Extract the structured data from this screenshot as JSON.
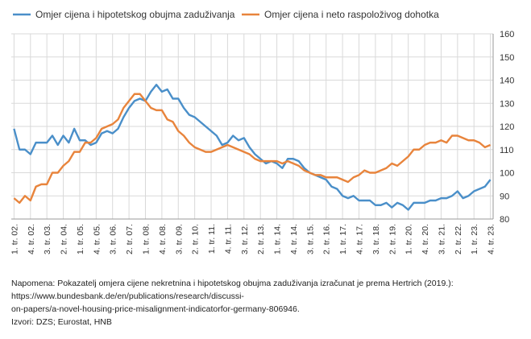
{
  "chart_data": {
    "type": "line",
    "categories": [
      "1. tr. 02.",
      null,
      null,
      "4. tr. 02.",
      null,
      null,
      "3. tr. 03.",
      null,
      null,
      "2. tr. 04.",
      null,
      null,
      "1. tr. 05.",
      null,
      null,
      "4. tr. 05.",
      null,
      null,
      "3. tr. 06.",
      null,
      null,
      "2. tr. 07.",
      null,
      null,
      "1. tr. 08.",
      null,
      null,
      "4. tr. 08.",
      null,
      null,
      "3. tr. 09.",
      null,
      null,
      "2. tr. 10.",
      null,
      null,
      "1. tr. 11.",
      null,
      null,
      "4. tr. 11.",
      null,
      null,
      "3. tr. 12.",
      null,
      null,
      "2. tr. 13.",
      null,
      null,
      "1. tr. 14.",
      null,
      null,
      "4. tr. 14.",
      null,
      null,
      "3. tr. 15.",
      null,
      null,
      "2. tr. 16.",
      null,
      null,
      "1. tr. 17.",
      null,
      null,
      "4. tr. 17.",
      null,
      null,
      "3. tr. 18.",
      null,
      null,
      "2. tr. 19.",
      null,
      null,
      "1. tr. 20.",
      null,
      null,
      "4. tr. 20.",
      null,
      null,
      "3. tr. 21.",
      null,
      null,
      "2. tr. 22.",
      null,
      null,
      "1. tr. 23.",
      null,
      null,
      "4. tr. 23."
    ],
    "series": [
      {
        "name": "Omjer cijena i hipotetskog obujma zaduživanja",
        "color": "#4a8fc9",
        "values": [
          119,
          110,
          110,
          108,
          113,
          113,
          113,
          116,
          112,
          116,
          113,
          119,
          114,
          114,
          112,
          113,
          117,
          118,
          117,
          119,
          124,
          128,
          131,
          132,
          131,
          135,
          138,
          135,
          136,
          132,
          132,
          128,
          125,
          124,
          122,
          120,
          118,
          116,
          112,
          113,
          116,
          114,
          115,
          111,
          108,
          106,
          104,
          105,
          104,
          102,
          106,
          106,
          105,
          102,
          100,
          99,
          98,
          97,
          94,
          93,
          90,
          89,
          90,
          88,
          88,
          88,
          86,
          86,
          87,
          85,
          87,
          86,
          84,
          87,
          87,
          87,
          88,
          88,
          89,
          89,
          90,
          92,
          89,
          90,
          92,
          93,
          94,
          97
        ]
      },
      {
        "name": "Omjer cijena i neto raspoloživog dohotka",
        "color": "#e8843c",
        "values": [
          89,
          87,
          90,
          88,
          94,
          95,
          95,
          100,
          100,
          103,
          105,
          109,
          109,
          113,
          113,
          115,
          119,
          120,
          121,
          123,
          128,
          131,
          134,
          134,
          131,
          128,
          127,
          127,
          123,
          122,
          118,
          116,
          113,
          111,
          110,
          109,
          109,
          110,
          111,
          112,
          111,
          110,
          109,
          108,
          106,
          105,
          105,
          105,
          105,
          104,
          105,
          104,
          103,
          101,
          100,
          99,
          99,
          98,
          98,
          98,
          97,
          96,
          98,
          99,
          101,
          100,
          100,
          101,
          102,
          104,
          103,
          105,
          107,
          110,
          110,
          112,
          113,
          113,
          114,
          113,
          116,
          116,
          115,
          114,
          114,
          113,
          111,
          112
        ]
      }
    ],
    "ylim": [
      80,
      160
    ],
    "yticks": [
      80,
      90,
      100,
      110,
      120,
      130,
      140,
      150,
      160
    ],
    "grid": true,
    "notes": [
      "Napomena: Pokazatelj omjera cijene nekretnina i hipotetskog obujma zaduživanja izračunat je prema Hertrich (2019.):",
      "https://www.bundesbank.de/en/publications/research/discussi-",
      "on-papers/a-novel-housing-price-misalignment-indicatorfor-germany-806946.",
      "Izvori: DZS; Eurostat, HNB"
    ]
  }
}
